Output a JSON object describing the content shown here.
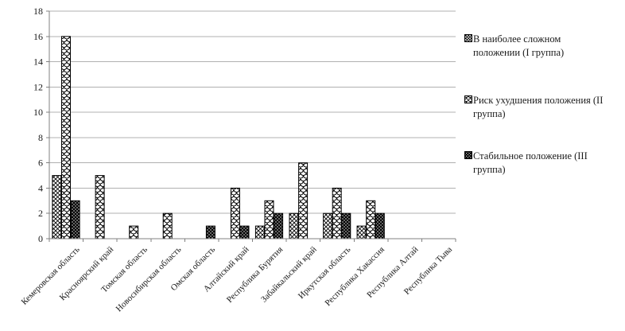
{
  "chart_data": {
    "type": "bar",
    "title": "",
    "xlabel": "",
    "ylabel": "",
    "categories": [
      "Кемеровская область",
      "Красноярский край",
      "Томская область",
      "Новосибирская область",
      "Омская область",
      "Алтайский край",
      "Республика Бурятия",
      "Забайкальский край",
      "Иркутская область",
      "Республика Хакассия",
      "Республика Алтай",
      "Республика Тыва"
    ],
    "series": [
      {
        "name": "В наиболее сложном положении (I группа)",
        "pattern": "crosshatch",
        "values": [
          5,
          0,
          0,
          0,
          0,
          0,
          1,
          2,
          2,
          1,
          0,
          0
        ]
      },
      {
        "name": "Риск ухудшения положения (II группа)",
        "pattern": "fish-scale",
        "values": [
          16,
          5,
          1,
          2,
          0,
          4,
          3,
          6,
          4,
          3,
          0,
          0
        ]
      },
      {
        "name": "Стабильное положение (III группа)",
        "pattern": "dark-dots",
        "values": [
          3,
          0,
          0,
          0,
          1,
          1,
          2,
          0,
          2,
          2,
          0,
          0
        ]
      }
    ],
    "ylim": [
      0,
      18
    ],
    "yticks": [
      0,
      2,
      4,
      6,
      8,
      10,
      12,
      14,
      16,
      18
    ],
    "grid": "horizontal",
    "legend_position": "right",
    "colors": {
      "background": "#ffffff",
      "bar_outline": "#000000",
      "gridline": "#b0b0b0",
      "axis": "#808080",
      "text": "#1a1a1a"
    }
  }
}
